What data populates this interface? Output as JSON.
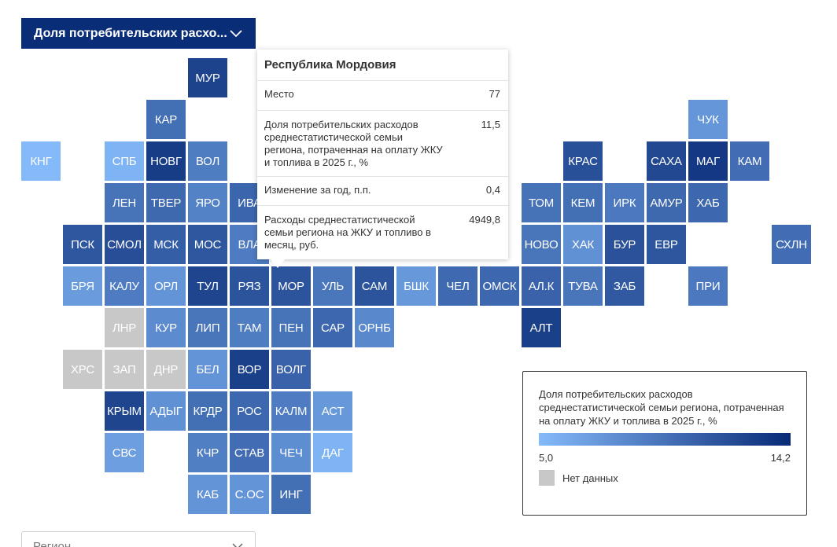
{
  "indicator_select": {
    "label": "Доля потребительских расхо..."
  },
  "region_select": {
    "placeholder": "Регион"
  },
  "colors": {
    "low": "#84bafa",
    "high": "#082a76",
    "no_data": "#c8c8c8",
    "dropdown_bg": "#0a2d78"
  },
  "map": {
    "regions": [
      {
        "code": "МУР",
        "row": 0,
        "col": 4,
        "value": 12.6
      },
      {
        "code": "КАР",
        "row": 1,
        "col": 3,
        "value": 9.8
      },
      {
        "code": "ЧУК",
        "row": 1,
        "col": 16,
        "value": 7.3
      },
      {
        "code": "КНГ",
        "row": 2,
        "col": 0,
        "value": 5.0
      },
      {
        "code": "СПБ",
        "row": 2,
        "col": 2,
        "value": 5.4
      },
      {
        "code": "НОВГ",
        "row": 2,
        "col": 3,
        "value": 13.0
      },
      {
        "code": "ВОЛ",
        "row": 2,
        "col": 4,
        "value": 8.9
      },
      {
        "code": "КРАС",
        "row": 2,
        "col": 13,
        "value": 11.8
      },
      {
        "code": "САХА",
        "row": 2,
        "col": 15,
        "value": 12.3
      },
      {
        "code": "МАГ",
        "row": 2,
        "col": 16,
        "value": 13.3
      },
      {
        "code": "КАМ",
        "row": 2,
        "col": 17,
        "value": 9.9
      },
      {
        "code": "ЛЕН",
        "row": 3,
        "col": 2,
        "value": 9.5
      },
      {
        "code": "ТВЕР",
        "row": 3,
        "col": 3,
        "value": 10.2
      },
      {
        "code": "ЯРО",
        "row": 3,
        "col": 4,
        "value": 8.6
      },
      {
        "code": "ИВА",
        "row": 3,
        "col": 5,
        "value": 10.4
      },
      {
        "code": "ТОМ",
        "row": 3,
        "col": 12,
        "value": 9.6
      },
      {
        "code": "КЕМ",
        "row": 3,
        "col": 13,
        "value": 9.8
      },
      {
        "code": "ИРК",
        "row": 3,
        "col": 14,
        "value": 9.2
      },
      {
        "code": "АМУР",
        "row": 3,
        "col": 15,
        "value": 10.2
      },
      {
        "code": "ХАБ",
        "row": 3,
        "col": 16,
        "value": 10.3
      },
      {
        "code": "ПСК",
        "row": 4,
        "col": 1,
        "value": 11.3
      },
      {
        "code": "СМОЛ",
        "row": 4,
        "col": 2,
        "value": 11.9
      },
      {
        "code": "МСК",
        "row": 4,
        "col": 3,
        "value": 10.9
      },
      {
        "code": "МОС",
        "row": 4,
        "col": 4,
        "value": 11.3
      },
      {
        "code": "ВЛА",
        "row": 4,
        "col": 5,
        "value": 9.0
      },
      {
        "code": "НОВО",
        "row": 4,
        "col": 12,
        "value": 9.4
      },
      {
        "code": "ХАК",
        "row": 4,
        "col": 13,
        "value": 7.6
      },
      {
        "code": "БУР",
        "row": 4,
        "col": 14,
        "value": 11.7
      },
      {
        "code": "ЕВР",
        "row": 4,
        "col": 15,
        "value": 11.4
      },
      {
        "code": "СХЛН",
        "row": 4,
        "col": 18,
        "value": 9.9
      },
      {
        "code": "БРЯ",
        "row": 5,
        "col": 1,
        "value": 7.0
      },
      {
        "code": "КАЛУ",
        "row": 5,
        "col": 2,
        "value": 9.0
      },
      {
        "code": "ОРЛ",
        "row": 5,
        "col": 3,
        "value": 7.4
      },
      {
        "code": "ТУЛ",
        "row": 5,
        "col": 4,
        "value": 12.5
      },
      {
        "code": "РЯЗ",
        "row": 5,
        "col": 5,
        "value": 11.5
      },
      {
        "code": "МОР",
        "row": 5,
        "col": 6,
        "value": 11.5
      },
      {
        "code": "УЛЬ",
        "row": 5,
        "col": 7,
        "value": 9.3
      },
      {
        "code": "САМ",
        "row": 5,
        "col": 8,
        "value": 11.5
      },
      {
        "code": "БШК",
        "row": 5,
        "col": 9,
        "value": 7.2
      },
      {
        "code": "ЧЕЛ",
        "row": 5,
        "col": 10,
        "value": 10.1
      },
      {
        "code": "ОМСК",
        "row": 5,
        "col": 11,
        "value": 10.3
      },
      {
        "code": "АЛ.К",
        "row": 5,
        "col": 12,
        "value": 10.6
      },
      {
        "code": "ТУВА",
        "row": 5,
        "col": 13,
        "value": 9.4
      },
      {
        "code": "ЗАБ",
        "row": 5,
        "col": 14,
        "value": 11.2
      },
      {
        "code": "ПРИ",
        "row": 5,
        "col": 16,
        "value": 9.2
      },
      {
        "code": "ЛНР",
        "row": 6,
        "col": 2,
        "value": null
      },
      {
        "code": "КУР",
        "row": 6,
        "col": 3,
        "value": 8.0
      },
      {
        "code": "ЛИП",
        "row": 6,
        "col": 4,
        "value": 9.4
      },
      {
        "code": "ТАМ",
        "row": 6,
        "col": 5,
        "value": 8.9
      },
      {
        "code": "ПЕН",
        "row": 6,
        "col": 6,
        "value": 9.5
      },
      {
        "code": "САР",
        "row": 6,
        "col": 7,
        "value": 10.3
      },
      {
        "code": "ОРНБ",
        "row": 6,
        "col": 8,
        "value": 8.2
      },
      {
        "code": "АЛТ",
        "row": 6,
        "col": 12,
        "value": 12.8
      },
      {
        "code": "ХРС",
        "row": 7,
        "col": 1,
        "value": null
      },
      {
        "code": "ЗАП",
        "row": 7,
        "col": 2,
        "value": null
      },
      {
        "code": "ДНР",
        "row": 7,
        "col": 3,
        "value": null
      },
      {
        "code": "БЕЛ",
        "row": 7,
        "col": 4,
        "value": 7.4
      },
      {
        "code": "ВОР",
        "row": 7,
        "col": 5,
        "value": 12.8
      },
      {
        "code": "ВОЛГ",
        "row": 7,
        "col": 6,
        "value": 10.6
      },
      {
        "code": "КРЫМ",
        "row": 8,
        "col": 2,
        "value": 12.5
      },
      {
        "code": "АДЫГ",
        "row": 8,
        "col": 3,
        "value": 7.6
      },
      {
        "code": "КРДР",
        "row": 8,
        "col": 4,
        "value": 9.8
      },
      {
        "code": "РОС",
        "row": 8,
        "col": 5,
        "value": 10.3
      },
      {
        "code": "КАЛМ",
        "row": 8,
        "col": 6,
        "value": 9.0
      },
      {
        "code": "АСТ",
        "row": 8,
        "col": 7,
        "value": 7.2
      },
      {
        "code": "СВС",
        "row": 9,
        "col": 2,
        "value": 6.8
      },
      {
        "code": "КЧР",
        "row": 9,
        "col": 4,
        "value": 8.8
      },
      {
        "code": "СТАВ",
        "row": 9,
        "col": 5,
        "value": 9.9
      },
      {
        "code": "ЧЕЧ",
        "row": 9,
        "col": 6,
        "value": 7.8
      },
      {
        "code": "ДАГ",
        "row": 9,
        "col": 7,
        "value": 5.4
      },
      {
        "code": "КАБ",
        "row": 10,
        "col": 4,
        "value": 7.4
      },
      {
        "code": "С.ОС",
        "row": 10,
        "col": 5,
        "value": 7.4
      },
      {
        "code": "ИНГ",
        "row": 10,
        "col": 6,
        "value": 9.8
      }
    ]
  },
  "tooltip": {
    "title": "Республика Мордовия",
    "rows": [
      {
        "label": "Место",
        "value": "77"
      },
      {
        "label": "Доля потребительских расходов среднестатистической семьи региона, потраченная на оплату ЖКУ и топлива в 2025 г., %",
        "value": "11,5"
      },
      {
        "label": "Изменение за год, п.п.",
        "value": "0,4"
      },
      {
        "label": "Расходы среднестатистической семьи региона на ЖКУ и топливо в месяц, руб.",
        "value": "4949,8"
      }
    ]
  },
  "legend": {
    "title": "Доля потребительских расходов среднестатистической семьи региона, потраченная на оплату ЖКУ и топлива в 2025 г., %",
    "min_label": "5,0",
    "max_label": "14,2",
    "scale_min": 5.0,
    "scale_max": 14.2,
    "no_data_label": "Нет данных"
  }
}
